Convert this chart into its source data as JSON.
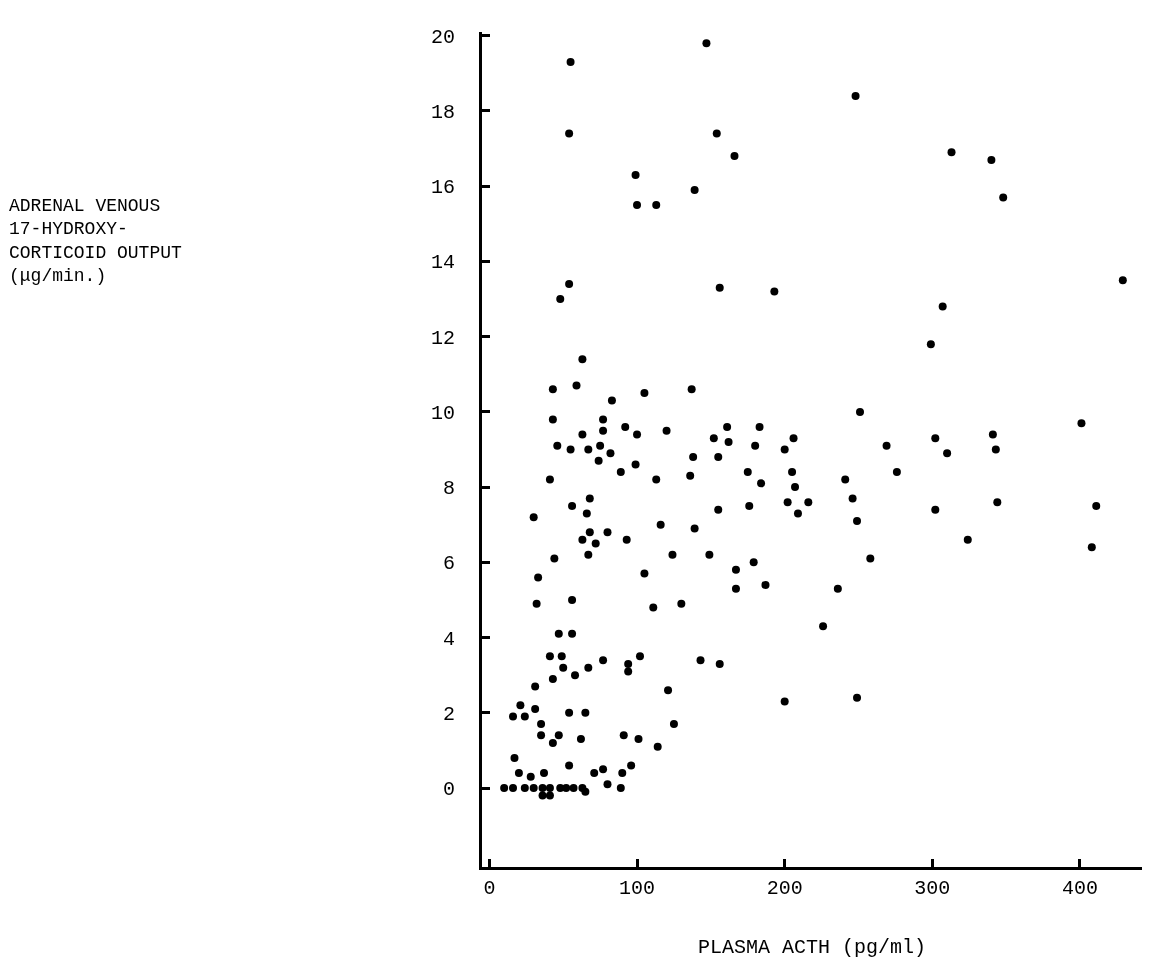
{
  "chart_data": {
    "type": "scatter",
    "xlabel": "PLASMA ACTH (pg/ml)",
    "annotations": [
      "ADRENAL VENOUS\n17-HYDROXY-\nCORTICOID OUTPUT\n(μg/min.)"
    ],
    "xlim": [
      -5,
      442
    ],
    "ylim": [
      -2.1,
      20.1
    ],
    "xticks": [
      0,
      100,
      200,
      300,
      400
    ],
    "yticks": [
      0,
      2,
      4,
      6,
      8,
      10,
      12,
      14,
      16,
      18,
      20
    ],
    "series": [
      {
        "color": "#000000",
        "x": [
          43,
          59,
          83,
          105,
          137,
          43,
          77,
          63,
          77,
          92,
          100,
          120,
          46,
          55,
          67,
          75,
          82,
          74,
          99,
          89,
          113,
          136,
          138,
          41,
          68,
          56,
          66,
          30,
          68,
          80,
          93,
          63,
          72,
          67,
          116,
          139,
          44,
          124,
          33,
          105,
          32,
          56,
          111,
          130,
          47,
          56,
          41,
          49,
          77,
          102,
          143,
          94,
          94,
          50,
          67,
          58,
          43,
          31,
          121,
          21,
          16,
          24,
          31,
          35,
          54,
          65,
          125,
          35,
          47,
          43,
          62,
          91,
          101,
          114,
          17,
          20,
          28,
          37,
          54,
          71,
          77,
          90,
          96,
          10,
          16,
          24,
          30,
          36,
          41,
          48,
          52,
          57,
          63,
          36,
          41,
          65,
          80,
          89,
          251,
          161,
          183,
          152,
          162,
          180,
          200,
          206,
          269,
          276,
          155,
          175,
          205,
          184,
          207,
          241,
          246,
          155,
          176,
          202,
          216,
          209,
          249,
          149,
          179,
          167,
          258,
          167,
          187,
          236,
          226,
          156,
          200,
          249,
          147,
          55,
          54,
          154,
          166,
          99,
          139,
          100,
          113,
          54,
          48,
          156,
          193,
          63,
          248,
          313,
          340,
          348,
          429,
          307,
          299,
          401,
          302,
          310,
          341,
          343,
          302,
          344,
          411,
          324,
          408
        ],
        "values": [
          10.6,
          10.7,
          10.3,
          10.5,
          10.6,
          9.8,
          9.8,
          9.4,
          9.5,
          9.6,
          9.4,
          9.5,
          9.1,
          9.0,
          9.0,
          9.1,
          8.9,
          8.7,
          8.6,
          8.4,
          8.2,
          8.3,
          8.8,
          8.2,
          7.7,
          7.5,
          7.3,
          7.2,
          6.8,
          6.8,
          6.6,
          6.6,
          6.5,
          6.2,
          7.0,
          6.9,
          6.1,
          6.2,
          5.6,
          5.7,
          4.9,
          5.0,
          4.8,
          4.9,
          4.1,
          4.1,
          3.5,
          3.5,
          3.4,
          3.5,
          3.4,
          3.3,
          3.1,
          3.2,
          3.2,
          3.0,
          2.9,
          2.7,
          2.6,
          2.2,
          1.9,
          1.9,
          2.1,
          1.7,
          2.0,
          2.0,
          1.7,
          1.4,
          1.4,
          1.2,
          1.3,
          1.4,
          1.3,
          1.1,
          0.8,
          0.4,
          0.3,
          0.4,
          0.6,
          0.4,
          0.5,
          0.4,
          0.6,
          0.0,
          0.0,
          0.0,
          0.0,
          0.0,
          0.0,
          0.0,
          0.0,
          0.0,
          0.0,
          -0.2,
          -0.2,
          -0.1,
          0.1,
          0.0,
          10.0,
          9.6,
          9.6,
          9.3,
          9.2,
          9.1,
          9.0,
          9.3,
          9.1,
          8.4,
          8.8,
          8.4,
          8.4,
          8.1,
          8.0,
          8.2,
          7.7,
          7.4,
          7.5,
          7.6,
          7.6,
          7.3,
          7.1,
          6.2,
          6.0,
          5.8,
          6.1,
          5.3,
          5.4,
          5.3,
          4.3,
          3.3,
          2.3,
          2.4,
          19.8,
          19.3,
          17.4,
          17.4,
          16.8,
          16.3,
          15.9,
          15.5,
          15.5,
          13.4,
          13.0,
          13.3,
          13.2,
          11.4,
          18.4,
          16.9,
          16.7,
          15.7,
          13.5,
          12.8,
          11.8,
          9.7,
          9.3,
          8.9,
          9.4,
          9.0,
          7.4,
          7.6,
          7.5,
          6.6,
          6.4
        ]
      }
    ]
  }
}
